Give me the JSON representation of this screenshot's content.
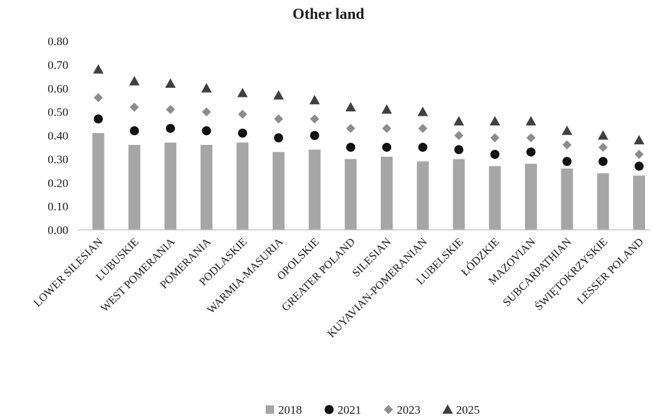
{
  "chart_data": {
    "type": "bar",
    "title": "Other land",
    "xlabel": "",
    "ylabel": "",
    "ylim": [
      0,
      0.8
    ],
    "yticks": [
      "0.00",
      "0.10",
      "0.20",
      "0.30",
      "0.40",
      "0.50",
      "0.60",
      "0.70",
      "0.80"
    ],
    "grid": false,
    "legend_position": "bottom",
    "categories": [
      "LOWER SILESIAN",
      "LUBUSKIE",
      "WEST POMERANIA",
      "POMERANIA",
      "PODLASKIE",
      "WARMIA-MASURIA",
      "OPOLSKIE",
      "GREATER POLAND",
      "SILESIAN",
      "KUYAVIAN-POMERANIAN",
      "LUBELSKIE",
      "ŁÓDZKIE",
      "MAZOVIAN",
      "SUBCARPATHIAN",
      "ŚWIĘTOKRZYSKIE",
      "LESSER POLAND"
    ],
    "series": [
      {
        "name": "2018",
        "mark": "bar",
        "color": "#a6a6a6",
        "values": [
          0.41,
          0.36,
          0.37,
          0.36,
          0.37,
          0.33,
          0.34,
          0.3,
          0.31,
          0.29,
          0.3,
          0.27,
          0.28,
          0.26,
          0.24,
          0.23
        ]
      },
      {
        "name": "2021",
        "mark": "circle",
        "color": "#111111",
        "values": [
          0.47,
          0.42,
          0.43,
          0.42,
          0.41,
          0.39,
          0.4,
          0.35,
          0.35,
          0.35,
          0.34,
          0.32,
          0.33,
          0.29,
          0.29,
          0.27
        ]
      },
      {
        "name": "2023",
        "mark": "diamond",
        "color": "#8c8c8c",
        "values": [
          0.56,
          0.52,
          0.51,
          0.5,
          0.49,
          0.47,
          0.47,
          0.43,
          0.43,
          0.43,
          0.4,
          0.39,
          0.39,
          0.36,
          0.35,
          0.32
        ]
      },
      {
        "name": "2025",
        "mark": "triangle",
        "color": "#404040",
        "values": [
          0.68,
          0.63,
          0.62,
          0.6,
          0.58,
          0.57,
          0.55,
          0.52,
          0.51,
          0.5,
          0.46,
          0.46,
          0.46,
          0.42,
          0.4,
          0.38
        ]
      }
    ]
  }
}
